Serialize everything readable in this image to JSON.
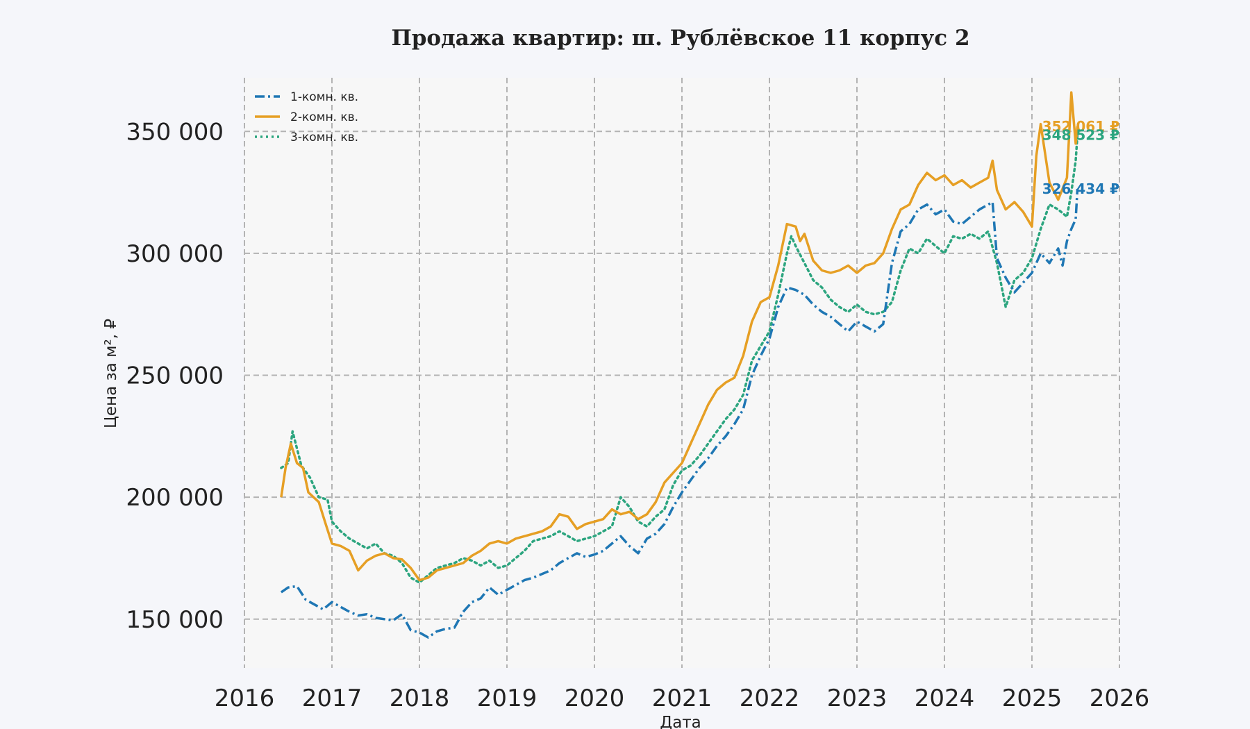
{
  "chart_data": {
    "type": "line",
    "title": "Продажа квартир: ш. Рублёвское 11 корпус 2",
    "xlabel": "Дата",
    "ylabel": "Цена за м², ₽",
    "xlim": [
      2016,
      2026
    ],
    "ylim": [
      130000,
      372000
    ],
    "x_ticks": [
      2016,
      2017,
      2018,
      2019,
      2020,
      2021,
      2022,
      2023,
      2024,
      2025,
      2026
    ],
    "y_ticks": [
      150000,
      200000,
      250000,
      300000,
      350000
    ],
    "y_tick_labels": [
      "150 000",
      "200 000",
      "250 000",
      "300 000",
      "350 000"
    ],
    "grid": true,
    "legend_position": "top-left",
    "series": [
      {
        "name": "1-комн. кв.",
        "color": "#1f77b4",
        "style": "dashdot",
        "end_label": "326 434 ₽",
        "points": [
          [
            2016.42,
            161000
          ],
          [
            2016.5,
            163000
          ],
          [
            2016.6,
            163500
          ],
          [
            2016.7,
            158000
          ],
          [
            2016.8,
            156000
          ],
          [
            2016.9,
            154000
          ],
          [
            2017.0,
            157000
          ],
          [
            2017.1,
            155000
          ],
          [
            2017.2,
            153000
          ],
          [
            2017.3,
            151500
          ],
          [
            2017.4,
            152000
          ],
          [
            2017.5,
            150500
          ],
          [
            2017.6,
            150000
          ],
          [
            2017.7,
            149500
          ],
          [
            2017.8,
            152000
          ],
          [
            2017.9,
            145500
          ],
          [
            2018.0,
            144500
          ],
          [
            2018.1,
            142500
          ],
          [
            2018.2,
            145000
          ],
          [
            2018.3,
            146000
          ],
          [
            2018.4,
            146500
          ],
          [
            2018.5,
            153000
          ],
          [
            2018.6,
            157000
          ],
          [
            2018.7,
            158500
          ],
          [
            2018.8,
            163000
          ],
          [
            2018.9,
            160000
          ],
          [
            2019.0,
            162000
          ],
          [
            2019.1,
            164000
          ],
          [
            2019.2,
            166000
          ],
          [
            2019.3,
            167000
          ],
          [
            2019.4,
            168500
          ],
          [
            2019.5,
            170000
          ],
          [
            2019.6,
            173000
          ],
          [
            2019.7,
            175000
          ],
          [
            2019.8,
            177000
          ],
          [
            2019.9,
            175500
          ],
          [
            2020.0,
            176500
          ],
          [
            2020.1,
            178000
          ],
          [
            2020.2,
            181000
          ],
          [
            2020.3,
            184000
          ],
          [
            2020.4,
            180000
          ],
          [
            2020.5,
            177000
          ],
          [
            2020.6,
            183000
          ],
          [
            2020.7,
            185000
          ],
          [
            2020.8,
            189000
          ],
          [
            2020.9,
            196000
          ],
          [
            2021.0,
            202000
          ],
          [
            2021.1,
            207000
          ],
          [
            2021.2,
            212000
          ],
          [
            2021.3,
            216000
          ],
          [
            2021.4,
            221000
          ],
          [
            2021.5,
            225000
          ],
          [
            2021.6,
            230000
          ],
          [
            2021.7,
            236000
          ],
          [
            2021.8,
            250000
          ],
          [
            2021.9,
            258000
          ],
          [
            2022.0,
            265000
          ],
          [
            2022.1,
            278000
          ],
          [
            2022.2,
            286000
          ],
          [
            2022.3,
            285000
          ],
          [
            2022.4,
            283000
          ],
          [
            2022.5,
            279000
          ],
          [
            2022.6,
            276000
          ],
          [
            2022.7,
            274000
          ],
          [
            2022.8,
            271000
          ],
          [
            2022.9,
            268000
          ],
          [
            2023.0,
            272000
          ],
          [
            2023.1,
            270000
          ],
          [
            2023.2,
            268000
          ],
          [
            2023.3,
            271000
          ],
          [
            2023.4,
            296000
          ],
          [
            2023.5,
            309000
          ],
          [
            2023.6,
            312000
          ],
          [
            2023.7,
            318000
          ],
          [
            2023.8,
            320000
          ],
          [
            2023.9,
            316000
          ],
          [
            2024.0,
            318000
          ],
          [
            2024.1,
            313000
          ],
          [
            2024.2,
            312000
          ],
          [
            2024.3,
            315000
          ],
          [
            2024.4,
            318000
          ],
          [
            2024.5,
            320000
          ],
          [
            2024.55,
            321000
          ],
          [
            2024.6,
            298000
          ],
          [
            2024.7,
            290000
          ],
          [
            2024.8,
            284000
          ],
          [
            2024.9,
            288000
          ],
          [
            2025.0,
            292000
          ],
          [
            2025.1,
            300000
          ],
          [
            2025.2,
            296000
          ],
          [
            2025.3,
            302000
          ],
          [
            2025.35,
            295000
          ],
          [
            2025.4,
            305000
          ],
          [
            2025.45,
            310000
          ],
          [
            2025.5,
            314000
          ],
          [
            2025.52,
            326434
          ]
        ]
      },
      {
        "name": "2-комн. кв.",
        "color": "#e69f24",
        "style": "solid",
        "end_label": "352 061 ₽",
        "points": [
          [
            2016.42,
            200000
          ],
          [
            2016.47,
            212000
          ],
          [
            2016.53,
            222000
          ],
          [
            2016.6,
            214000
          ],
          [
            2016.67,
            212000
          ],
          [
            2016.73,
            202000
          ],
          [
            2016.85,
            198000
          ],
          [
            2016.92,
            190000
          ],
          [
            2017.0,
            181000
          ],
          [
            2017.1,
            180000
          ],
          [
            2017.2,
            178000
          ],
          [
            2017.3,
            170000
          ],
          [
            2017.4,
            174000
          ],
          [
            2017.5,
            176000
          ],
          [
            2017.6,
            177000
          ],
          [
            2017.7,
            175000
          ],
          [
            2017.8,
            174500
          ],
          [
            2017.9,
            171000
          ],
          [
            2018.0,
            166000
          ],
          [
            2018.1,
            167000
          ],
          [
            2018.2,
            170000
          ],
          [
            2018.3,
            171000
          ],
          [
            2018.4,
            172000
          ],
          [
            2018.5,
            173000
          ],
          [
            2018.6,
            176000
          ],
          [
            2018.7,
            178000
          ],
          [
            2018.8,
            181000
          ],
          [
            2018.9,
            182000
          ],
          [
            2019.0,
            181000
          ],
          [
            2019.1,
            183000
          ],
          [
            2019.2,
            184000
          ],
          [
            2019.3,
            185000
          ],
          [
            2019.4,
            186000
          ],
          [
            2019.5,
            188000
          ],
          [
            2019.6,
            193000
          ],
          [
            2019.7,
            192000
          ],
          [
            2019.8,
            187000
          ],
          [
            2019.9,
            189000
          ],
          [
            2020.0,
            190000
          ],
          [
            2020.1,
            191000
          ],
          [
            2020.2,
            195000
          ],
          [
            2020.3,
            193000
          ],
          [
            2020.4,
            194000
          ],
          [
            2020.5,
            191000
          ],
          [
            2020.6,
            193000
          ],
          [
            2020.7,
            198000
          ],
          [
            2020.8,
            206000
          ],
          [
            2020.9,
            210000
          ],
          [
            2021.0,
            214000
          ],
          [
            2021.1,
            222000
          ],
          [
            2021.2,
            230000
          ],
          [
            2021.3,
            238000
          ],
          [
            2021.4,
            244000
          ],
          [
            2021.5,
            247000
          ],
          [
            2021.6,
            249000
          ],
          [
            2021.7,
            258000
          ],
          [
            2021.8,
            272000
          ],
          [
            2021.9,
            280000
          ],
          [
            2022.0,
            282000
          ],
          [
            2022.1,
            295000
          ],
          [
            2022.2,
            312000
          ],
          [
            2022.3,
            311000
          ],
          [
            2022.35,
            305000
          ],
          [
            2022.4,
            308000
          ],
          [
            2022.5,
            297000
          ],
          [
            2022.6,
            293000
          ],
          [
            2022.7,
            292000
          ],
          [
            2022.8,
            293000
          ],
          [
            2022.9,
            295000
          ],
          [
            2023.0,
            292000
          ],
          [
            2023.1,
            295000
          ],
          [
            2023.2,
            296000
          ],
          [
            2023.3,
            300000
          ],
          [
            2023.4,
            310000
          ],
          [
            2023.5,
            318000
          ],
          [
            2023.6,
            320000
          ],
          [
            2023.7,
            328000
          ],
          [
            2023.8,
            333000
          ],
          [
            2023.9,
            330000
          ],
          [
            2024.0,
            332000
          ],
          [
            2024.1,
            328000
          ],
          [
            2024.2,
            330000
          ],
          [
            2024.3,
            327000
          ],
          [
            2024.4,
            329000
          ],
          [
            2024.5,
            331000
          ],
          [
            2024.55,
            338000
          ],
          [
            2024.6,
            326000
          ],
          [
            2024.7,
            318000
          ],
          [
            2024.8,
            321000
          ],
          [
            2024.9,
            317000
          ],
          [
            2025.0,
            311000
          ],
          [
            2025.05,
            340000
          ],
          [
            2025.1,
            353000
          ],
          [
            2025.2,
            329000
          ],
          [
            2025.3,
            322000
          ],
          [
            2025.4,
            331000
          ],
          [
            2025.45,
            366000
          ],
          [
            2025.5,
            345000
          ],
          [
            2025.52,
            352061
          ]
        ]
      },
      {
        "name": "3-комн. кв.",
        "color": "#2ca57f",
        "style": "dotted",
        "end_label": "348 523 ₽",
        "points": [
          [
            2016.42,
            212000
          ],
          [
            2016.5,
            214000
          ],
          [
            2016.55,
            227000
          ],
          [
            2016.65,
            213000
          ],
          [
            2016.75,
            208000
          ],
          [
            2016.85,
            200000
          ],
          [
            2016.95,
            199000
          ],
          [
            2017.0,
            190000
          ],
          [
            2017.1,
            186000
          ],
          [
            2017.2,
            183000
          ],
          [
            2017.3,
            181000
          ],
          [
            2017.4,
            179000
          ],
          [
            2017.5,
            181000
          ],
          [
            2017.6,
            177000
          ],
          [
            2017.7,
            176000
          ],
          [
            2017.8,
            173000
          ],
          [
            2017.9,
            167000
          ],
          [
            2018.0,
            165000
          ],
          [
            2018.1,
            168000
          ],
          [
            2018.2,
            171000
          ],
          [
            2018.3,
            172000
          ],
          [
            2018.4,
            173000
          ],
          [
            2018.5,
            175000
          ],
          [
            2018.6,
            174000
          ],
          [
            2018.7,
            172000
          ],
          [
            2018.8,
            174000
          ],
          [
            2018.9,
            171000
          ],
          [
            2019.0,
            172000
          ],
          [
            2019.1,
            175000
          ],
          [
            2019.2,
            178000
          ],
          [
            2019.3,
            182000
          ],
          [
            2019.4,
            183000
          ],
          [
            2019.5,
            184000
          ],
          [
            2019.6,
            186000
          ],
          [
            2019.7,
            184000
          ],
          [
            2019.8,
            182000
          ],
          [
            2019.9,
            183000
          ],
          [
            2020.0,
            184000
          ],
          [
            2020.1,
            186000
          ],
          [
            2020.2,
            188000
          ],
          [
            2020.3,
            200000
          ],
          [
            2020.4,
            196000
          ],
          [
            2020.5,
            190000
          ],
          [
            2020.6,
            188000
          ],
          [
            2020.7,
            192000
          ],
          [
            2020.8,
            195000
          ],
          [
            2020.9,
            205000
          ],
          [
            2021.0,
            211000
          ],
          [
            2021.1,
            213000
          ],
          [
            2021.2,
            217000
          ],
          [
            2021.3,
            222000
          ],
          [
            2021.4,
            227000
          ],
          [
            2021.5,
            232000
          ],
          [
            2021.6,
            236000
          ],
          [
            2021.7,
            242000
          ],
          [
            2021.8,
            256000
          ],
          [
            2021.9,
            262000
          ],
          [
            2022.0,
            268000
          ],
          [
            2022.1,
            283000
          ],
          [
            2022.2,
            300000
          ],
          [
            2022.25,
            307000
          ],
          [
            2022.3,
            303000
          ],
          [
            2022.4,
            296000
          ],
          [
            2022.5,
            289000
          ],
          [
            2022.6,
            286000
          ],
          [
            2022.7,
            281000
          ],
          [
            2022.8,
            278000
          ],
          [
            2022.9,
            276000
          ],
          [
            2023.0,
            279000
          ],
          [
            2023.1,
            276000
          ],
          [
            2023.2,
            275000
          ],
          [
            2023.3,
            276000
          ],
          [
            2023.4,
            280000
          ],
          [
            2023.5,
            293000
          ],
          [
            2023.6,
            302000
          ],
          [
            2023.7,
            300000
          ],
          [
            2023.8,
            306000
          ],
          [
            2023.9,
            303000
          ],
          [
            2024.0,
            300000
          ],
          [
            2024.1,
            307000
          ],
          [
            2024.2,
            306000
          ],
          [
            2024.3,
            308000
          ],
          [
            2024.4,
            306000
          ],
          [
            2024.5,
            309000
          ],
          [
            2024.6,
            296000
          ],
          [
            2024.7,
            278000
          ],
          [
            2024.8,
            289000
          ],
          [
            2024.9,
            292000
          ],
          [
            2025.0,
            298000
          ],
          [
            2025.1,
            310000
          ],
          [
            2025.2,
            320000
          ],
          [
            2025.3,
            318000
          ],
          [
            2025.4,
            315000
          ],
          [
            2025.45,
            325000
          ],
          [
            2025.5,
            338000
          ],
          [
            2025.52,
            348523
          ]
        ]
      }
    ]
  }
}
